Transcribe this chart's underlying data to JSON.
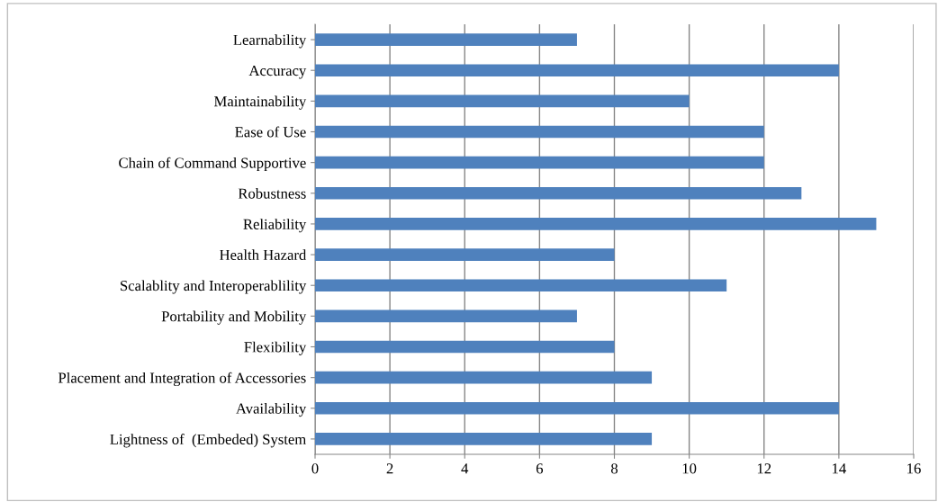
{
  "chart_data": {
    "type": "bar",
    "orientation": "horizontal",
    "categories": [
      "Learnability",
      "Accuracy",
      "Maintainability",
      "Ease of Use",
      "Chain of Command Supportive",
      "Robustness",
      "Reliability",
      "Health Hazard",
      "Scalablity and Interoperablility",
      "Portability and Mobility",
      "Flexibility",
      "Placement and Integration of Accessories",
      "Availability",
      "Lightness of  (Embeded) System"
    ],
    "values": [
      7,
      14,
      10,
      12,
      12,
      13,
      15,
      8,
      11,
      7,
      8,
      9,
      14,
      9
    ],
    "color": "#4f81bd",
    "xlim": [
      0,
      16
    ],
    "xticks": [
      0,
      2,
      4,
      6,
      8,
      10,
      12,
      14,
      16
    ],
    "grid": "x",
    "legend": false
  }
}
